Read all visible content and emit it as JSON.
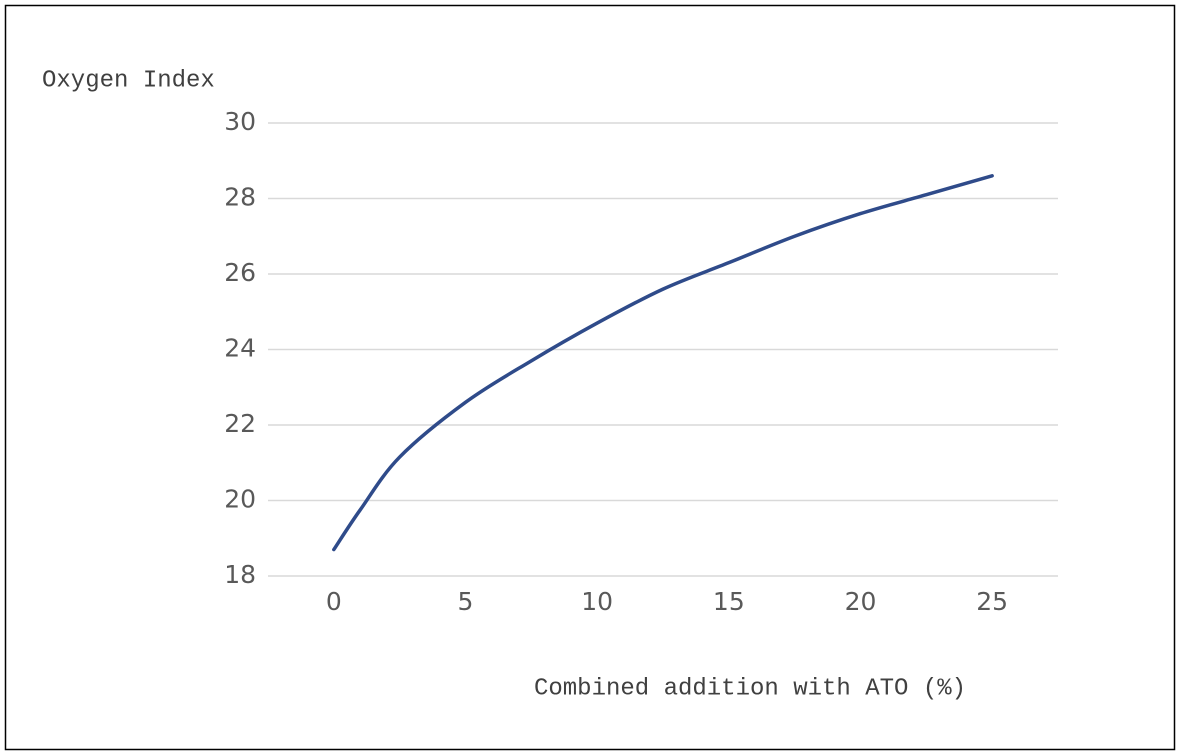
{
  "chart_data": {
    "type": "line",
    "y_label": "Oxygen Index",
    "x_label": "Combined addition with ATO (%)",
    "x": [
      0,
      1,
      2.5,
      5,
      7.5,
      10,
      12.5,
      15,
      17.5,
      20,
      22.5,
      25
    ],
    "series": [
      {
        "color": "#2f4b8a",
        "values": [
          18.7,
          19.75,
          21.15,
          22.6,
          23.7,
          24.7,
          25.6,
          26.3,
          27.0,
          27.6,
          28.1,
          28.6
        ]
      }
    ],
    "xlim": [
      -2.5,
      27.5
    ],
    "xticks": [
      0,
      5,
      10,
      15,
      20,
      25
    ],
    "ylim": [
      18,
      30
    ],
    "yticks": [
      18,
      20,
      22,
      24,
      26,
      28,
      30
    ],
    "grid": true
  }
}
